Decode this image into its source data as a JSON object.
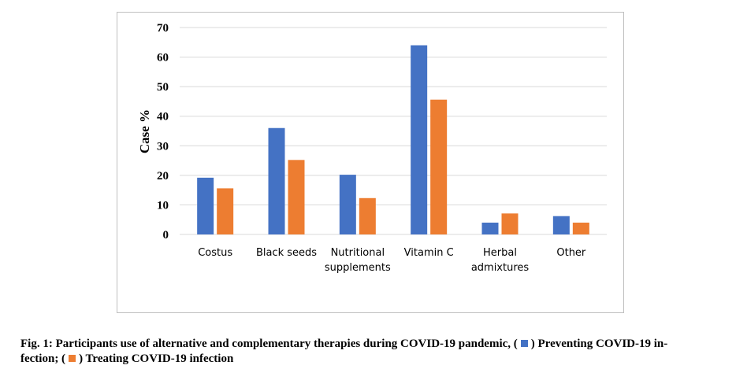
{
  "chart_data": {
    "type": "bar",
    "ylabel": "Case %",
    "xlabel": "",
    "ylim": [
      0,
      70
    ],
    "yticks": [
      0,
      10,
      20,
      30,
      40,
      50,
      60,
      70
    ],
    "grid": true,
    "categories": [
      [
        "Costus"
      ],
      [
        "Black seeds"
      ],
      [
        "Nutritional",
        "supplements"
      ],
      [
        "Vitamin C"
      ],
      [
        "Herbal",
        "admixtures"
      ],
      [
        "Other"
      ]
    ],
    "series": [
      {
        "name": "Preventing COVID-19 infection",
        "color": "#4472c4",
        "values": [
          19.2,
          36,
          20.2,
          64,
          4,
          6.2
        ]
      },
      {
        "name": "Treating COVID-19 infection",
        "color": "#ed7d31",
        "values": [
          15.6,
          25.2,
          12.3,
          45.6,
          7.1,
          4
        ]
      }
    ]
  },
  "caption": {
    "part1": "Fig. 1: Participants use of alternative and complementary therapies during COVID-19 pandemic, (",
    "part2": ") Preventing COVID-19 in-",
    "part3": "fection; (",
    "part4": ") Treating COVID-19 infection"
  },
  "colors": {
    "preventing": "#4472c4",
    "treating": "#ed7d31",
    "grid": "#d9d9d9"
  }
}
